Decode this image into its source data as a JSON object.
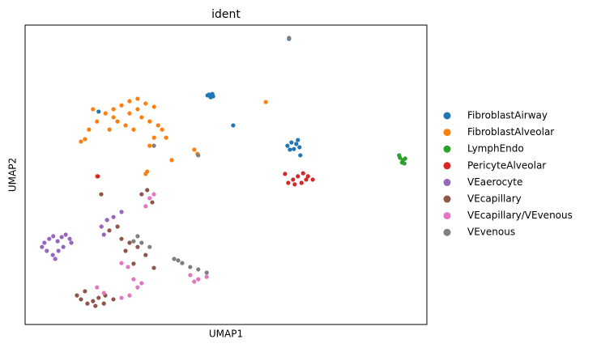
{
  "chart_data": {
    "type": "scatter",
    "title": "ident",
    "xlabel": "UMAP1",
    "ylabel": "UMAP2",
    "xlim": [
      0,
      100
    ],
    "ylim": [
      0,
      100
    ],
    "legend": "right",
    "series": [
      {
        "name": "FibroblastAirway",
        "color": "#1f77b4",
        "x": [
          45.8,
          46.6,
          46.2,
          45.4,
          46.8,
          65.3,
          66.3,
          67.5,
          66.9,
          68.3,
          65.9,
          67.9,
          51.8,
          18.3,
          65.7,
          68.5
        ],
        "values": [
          76.8,
          77.0,
          75.9,
          76.5,
          76.2,
          59.7,
          60.8,
          60.3,
          58.6,
          59.2,
          58.4,
          61.6,
          66.5,
          71.1,
          95.4,
          56.5
        ]
      },
      {
        "name": "FibroblastAlveolar",
        "color": "#ff7f0e",
        "x": [
          20.0,
          22.0,
          24.0,
          26.0,
          28.0,
          30.0,
          32.1,
          23.0,
          25.0,
          27.0,
          29.0,
          31.0,
          33.1,
          34.1,
          35.1,
          32.1,
          31.0,
          17.9,
          15.9,
          13.9,
          14.9,
          21.0,
          22.0,
          26.0,
          28.0,
          42.1,
          42.9,
          59.9,
          30.0,
          30.4,
          17.9,
          36.5,
          16.9
        ],
        "values": [
          70.5,
          71.9,
          73.2,
          74.6,
          75.4,
          73.8,
          72.7,
          67.8,
          66.5,
          65.1,
          69.2,
          67.8,
          66.5,
          65.1,
          62.4,
          62.4,
          59.7,
          67.8,
          65.1,
          61.1,
          61.9,
          65.1,
          69.2,
          70.5,
          71.9,
          58.4,
          57.0,
          74.3,
          50.3,
          51.1,
          49.5,
          54.9,
          71.9
        ]
      },
      {
        "name": "LymphEndo",
        "color": "#2ca02c",
        "x": [
          93.3,
          94.0,
          94.6,
          93.8,
          94.4,
          93.1
        ],
        "values": [
          55.7,
          54.9,
          55.4,
          54.1,
          53.8,
          56.5
        ]
      },
      {
        "name": "PericyteAlveolar",
        "color": "#d62728",
        "x": [
          65.5,
          66.7,
          67.9,
          69.2,
          70.4,
          71.6,
          68.8,
          67.1,
          69.96,
          64.7,
          18.1
        ],
        "values": [
          47.3,
          48.4,
          49.5,
          50.5,
          49.5,
          48.4,
          47.3,
          46.8,
          48.4,
          50.3,
          49.5
        ]
      },
      {
        "name": "VEaerocyte",
        "color": "#9467bd",
        "x": [
          4.8,
          6.0,
          7.0,
          8.1,
          9.1,
          10.1,
          11.1,
          5.4,
          6.9,
          8.3,
          9.5,
          11.5,
          4.2,
          7.5,
          19.0,
          20.4,
          22.0,
          24.0,
          19.6
        ],
        "values": [
          27.3,
          28.6,
          29.5,
          27.8,
          29.2,
          30.0,
          28.6,
          24.6,
          23.2,
          24.6,
          25.9,
          27.3,
          25.9,
          21.9,
          32.7,
          34.9,
          35.9,
          37.6,
          30.0
        ]
      },
      {
        "name": "VEcapillary",
        "color": "#8c564b",
        "x": [
          12.9,
          13.9,
          15.5,
          16.9,
          18.3,
          19.96,
          14.9,
          17.5,
          19.6,
          21.98,
          20.97,
          23.0,
          24.0,
          26.0,
          28.0,
          30.0,
          25.0,
          29.0,
          30.4,
          31.65,
          18.95,
          32.06,
          27.0
        ],
        "values": [
          9.7,
          8.4,
          7.0,
          7.8,
          8.9,
          9.7,
          11.1,
          6.2,
          7.0,
          8.4,
          31.4,
          32.7,
          28.6,
          27.3,
          25.9,
          23.2,
          24.6,
          43.5,
          44.9,
          40.8,
          43.5,
          18.9,
          20.3
        ]
      },
      {
        "name": "VEcapillary/VEvenous",
        "color": "#e377c2",
        "x": [
          24.0,
          25.6,
          27.0,
          28.0,
          26.0,
          29.0,
          31.0,
          30.0,
          32.06,
          41.1,
          43.1,
          45.2,
          42.1,
          17.9,
          19.6,
          24.0
        ],
        "values": [
          20.5,
          19.2,
          15.1,
          12.4,
          9.7,
          13.8,
          42.2,
          39.5,
          43.5,
          16.5,
          15.1,
          15.9,
          14.3,
          12.4,
          10.5,
          8.9
        ]
      },
      {
        "name": "VEvenous",
        "color": "#7f7f7f",
        "x": [
          37.1,
          39.1,
          41.1,
          43.1,
          45.2,
          38.1,
          27.0,
          29.0,
          31.0,
          28.0,
          43.1,
          32.06,
          65.7
        ],
        "values": [
          21.9,
          20.5,
          19.2,
          18.4,
          17.3,
          21.4,
          27.8,
          27.3,
          25.9,
          29.5,
          56.5,
          59.7,
          95.7
        ]
      }
    ]
  }
}
